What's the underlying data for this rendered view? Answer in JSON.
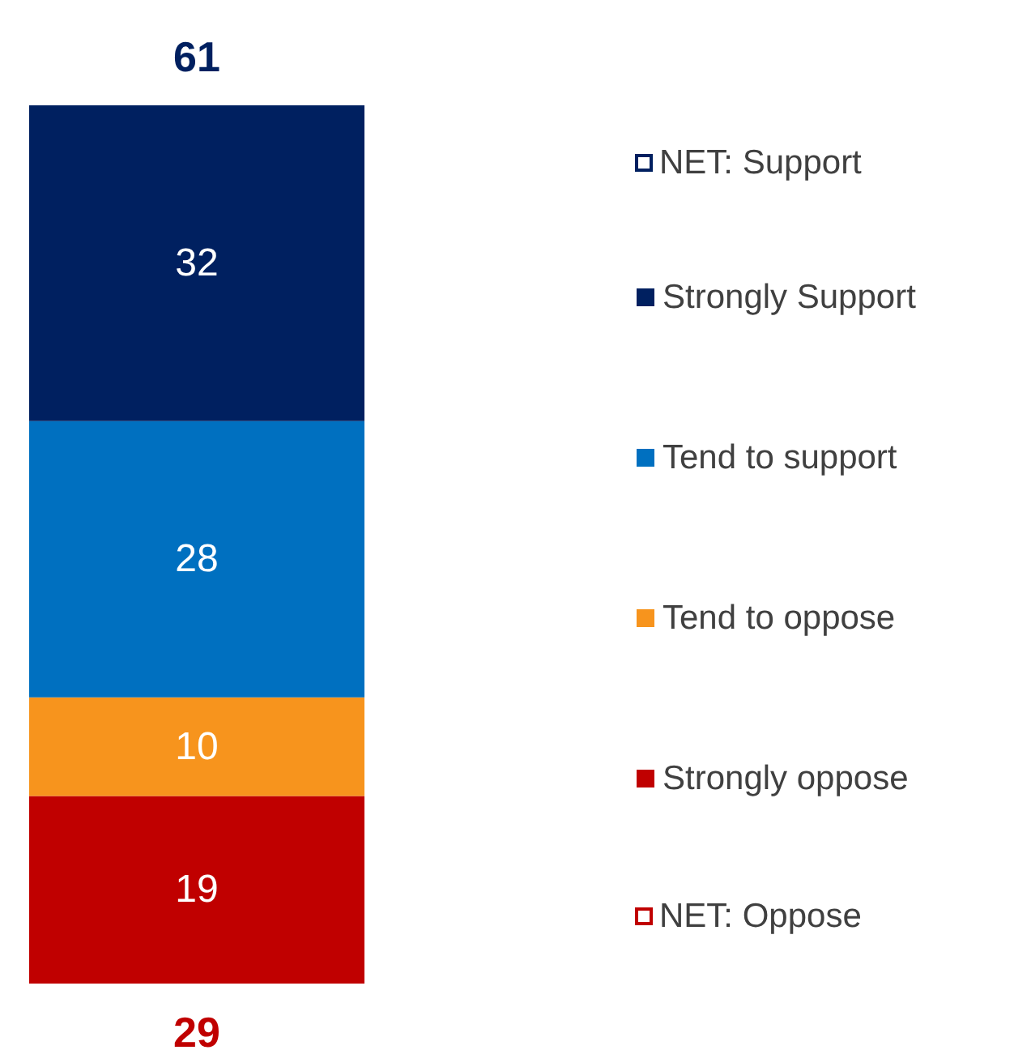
{
  "chart_data": {
    "type": "bar",
    "stacked": true,
    "categories": [
      null
    ],
    "data_labels": true,
    "legend": "right",
    "series": [
      {
        "name": "Strongly oppose",
        "color": "#c00000",
        "values": [
          19
        ]
      },
      {
        "name": "Tend to oppose",
        "color": "#f7941d",
        "values": [
          10
        ]
      },
      {
        "name": "Tend to support",
        "color": "#0070c0",
        "values": [
          28
        ]
      },
      {
        "name": "Strongly Support",
        "color": "#002060",
        "values": [
          32
        ]
      }
    ],
    "annotations": [
      "NET: Support",
      "NET: Oppose",
      {
        "text": "61",
        "y": 89
      },
      {
        "text": "29",
        "y": 0
      }
    ]
  }
}
